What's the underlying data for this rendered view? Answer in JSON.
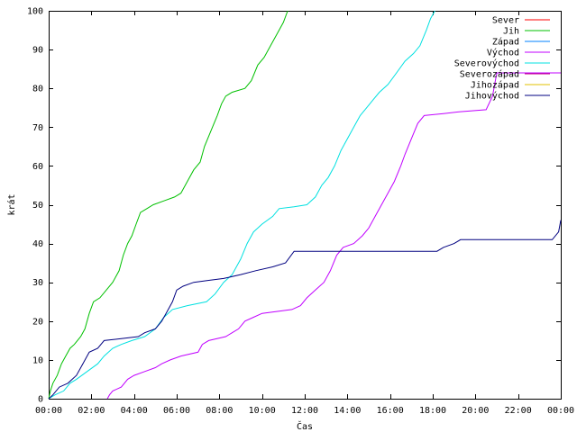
{
  "chart_data": {
    "type": "line",
    "xlabel": "Čas",
    "ylabel": "krát",
    "xlim": [
      0,
      24
    ],
    "ylim": [
      0,
      100
    ],
    "x_tick_values": [
      0,
      2,
      4,
      6,
      8,
      10,
      12,
      14,
      16,
      18,
      20,
      22,
      24
    ],
    "x_tick_labels": [
      "00:00",
      "02:00",
      "04:00",
      "06:00",
      "08:00",
      "10:00",
      "12:00",
      "14:00",
      "16:00",
      "18:00",
      "20:00",
      "22:00",
      "00:00"
    ],
    "y_tick_values": [
      0,
      10,
      20,
      30,
      40,
      50,
      60,
      70,
      80,
      90,
      100
    ],
    "y_tick_labels": [
      "0",
      "10",
      "20",
      "30",
      "40",
      "50",
      "60",
      "70",
      "80",
      "90",
      "100"
    ],
    "grid": false,
    "legend_position": "top-right",
    "series": [
      {
        "name": "Sever",
        "color": "#ff0000",
        "points": []
      },
      {
        "name": "Jih",
        "color": "#00c000",
        "points": [
          [
            0,
            0
          ],
          [
            0.08,
            2
          ],
          [
            0.2,
            4
          ],
          [
            0.4,
            6
          ],
          [
            0.6,
            9
          ],
          [
            0.8,
            11
          ],
          [
            1.0,
            13
          ],
          [
            1.2,
            14
          ],
          [
            1.5,
            16
          ],
          [
            1.7,
            18
          ],
          [
            1.9,
            22
          ],
          [
            2.1,
            25
          ],
          [
            2.4,
            26
          ],
          [
            2.7,
            28
          ],
          [
            3.0,
            30
          ],
          [
            3.3,
            33
          ],
          [
            3.5,
            37
          ],
          [
            3.7,
            40
          ],
          [
            3.9,
            42
          ],
          [
            4.1,
            45
          ],
          [
            4.3,
            48
          ],
          [
            4.6,
            49
          ],
          [
            4.9,
            50
          ],
          [
            5.4,
            51
          ],
          [
            5.9,
            52
          ],
          [
            6.2,
            53
          ],
          [
            6.5,
            56
          ],
          [
            6.8,
            59
          ],
          [
            7.1,
            61
          ],
          [
            7.3,
            65
          ],
          [
            7.6,
            69
          ],
          [
            7.9,
            73
          ],
          [
            8.1,
            76
          ],
          [
            8.3,
            78
          ],
          [
            8.6,
            79
          ],
          [
            9.2,
            80
          ],
          [
            9.5,
            82
          ],
          [
            9.8,
            86
          ],
          [
            10.1,
            88
          ],
          [
            10.4,
            91
          ],
          [
            10.7,
            94
          ],
          [
            11.0,
            97
          ],
          [
            11.2,
            100
          ]
        ]
      },
      {
        "name": "Západ",
        "color": "#0080ff",
        "points": []
      },
      {
        "name": "Východ",
        "color": "#c000ff",
        "points": [
          [
            2.75,
            0
          ],
          [
            2.85,
            1
          ],
          [
            3.0,
            2
          ],
          [
            3.4,
            3
          ],
          [
            3.7,
            5
          ],
          [
            4.0,
            6
          ],
          [
            4.5,
            7
          ],
          [
            5.0,
            8
          ],
          [
            5.3,
            9
          ],
          [
            5.7,
            10
          ],
          [
            6.2,
            11
          ],
          [
            7.0,
            12
          ],
          [
            7.2,
            14
          ],
          [
            7.5,
            15
          ],
          [
            8.3,
            16
          ],
          [
            8.6,
            17
          ],
          [
            8.9,
            18
          ],
          [
            9.2,
            20
          ],
          [
            9.6,
            21
          ],
          [
            10.0,
            22
          ],
          [
            11.4,
            23
          ],
          [
            11.8,
            24
          ],
          [
            12.1,
            26
          ],
          [
            12.5,
            28
          ],
          [
            12.9,
            30
          ],
          [
            13.2,
            33
          ],
          [
            13.5,
            37
          ],
          [
            13.8,
            39
          ],
          [
            14.3,
            40
          ],
          [
            14.7,
            42
          ],
          [
            15.0,
            44
          ],
          [
            15.3,
            47
          ],
          [
            15.6,
            50
          ],
          [
            15.9,
            53
          ],
          [
            16.2,
            56
          ],
          [
            16.5,
            60
          ],
          [
            16.7,
            63
          ],
          [
            17.0,
            67
          ],
          [
            17.3,
            71
          ],
          [
            17.6,
            73
          ],
          [
            18.5,
            73.5
          ],
          [
            19.3,
            74
          ],
          [
            20.5,
            74.5
          ],
          [
            20.8,
            78
          ],
          [
            21.0,
            84
          ],
          [
            24.0,
            84
          ]
        ]
      },
      {
        "name": "Severovýchod",
        "color": "#00e0e0",
        "points": [
          [
            0,
            0
          ],
          [
            0.3,
            1
          ],
          [
            0.7,
            2
          ],
          [
            1.0,
            4
          ],
          [
            1.3,
            5
          ],
          [
            1.8,
            7
          ],
          [
            2.3,
            9
          ],
          [
            2.6,
            11
          ],
          [
            3.0,
            13
          ],
          [
            3.4,
            14
          ],
          [
            3.9,
            15
          ],
          [
            4.5,
            16
          ],
          [
            5.0,
            18
          ],
          [
            5.4,
            21
          ],
          [
            5.8,
            23
          ],
          [
            6.5,
            24
          ],
          [
            7.4,
            25
          ],
          [
            7.8,
            27
          ],
          [
            8.2,
            30
          ],
          [
            8.6,
            32
          ],
          [
            9.0,
            36
          ],
          [
            9.3,
            40
          ],
          [
            9.6,
            43
          ],
          [
            10.0,
            45
          ],
          [
            10.5,
            47
          ],
          [
            10.8,
            49
          ],
          [
            11.5,
            49.5
          ],
          [
            12.1,
            50
          ],
          [
            12.5,
            52
          ],
          [
            12.8,
            55
          ],
          [
            13.1,
            57
          ],
          [
            13.4,
            60
          ],
          [
            13.7,
            64
          ],
          [
            14.0,
            67
          ],
          [
            14.3,
            70
          ],
          [
            14.6,
            73
          ],
          [
            14.9,
            75
          ],
          [
            15.2,
            77
          ],
          [
            15.5,
            79
          ],
          [
            15.9,
            81
          ],
          [
            16.3,
            84
          ],
          [
            16.7,
            87
          ],
          [
            17.1,
            89
          ],
          [
            17.4,
            91
          ],
          [
            17.7,
            95
          ],
          [
            17.9,
            98
          ],
          [
            18.1,
            100
          ]
        ]
      },
      {
        "name": "Severozápad",
        "color": "#c00080",
        "points": []
      },
      {
        "name": "Jihozápad",
        "color": "#e0c000",
        "points": []
      },
      {
        "name": "Jihovýchod",
        "color": "#000080",
        "points": [
          [
            0,
            0
          ],
          [
            0.2,
            1
          ],
          [
            0.5,
            3
          ],
          [
            0.9,
            4
          ],
          [
            1.3,
            6
          ],
          [
            1.6,
            9
          ],
          [
            1.9,
            12
          ],
          [
            2.3,
            13
          ],
          [
            2.6,
            15
          ],
          [
            3.4,
            15.5
          ],
          [
            4.2,
            16
          ],
          [
            4.5,
            17
          ],
          [
            5.0,
            18
          ],
          [
            5.3,
            20
          ],
          [
            5.5,
            22
          ],
          [
            5.8,
            25
          ],
          [
            6.0,
            28
          ],
          [
            6.3,
            29
          ],
          [
            6.8,
            30
          ],
          [
            7.5,
            30.5
          ],
          [
            8.2,
            31
          ],
          [
            9.0,
            32
          ],
          [
            9.7,
            33
          ],
          [
            10.5,
            34
          ],
          [
            11.1,
            35
          ],
          [
            11.5,
            38
          ],
          [
            14.0,
            38
          ],
          [
            18.2,
            38
          ],
          [
            18.5,
            39
          ],
          [
            19.0,
            40
          ],
          [
            19.3,
            41
          ],
          [
            23.6,
            41
          ],
          [
            23.9,
            43
          ],
          [
            24.0,
            46
          ]
        ]
      }
    ]
  }
}
